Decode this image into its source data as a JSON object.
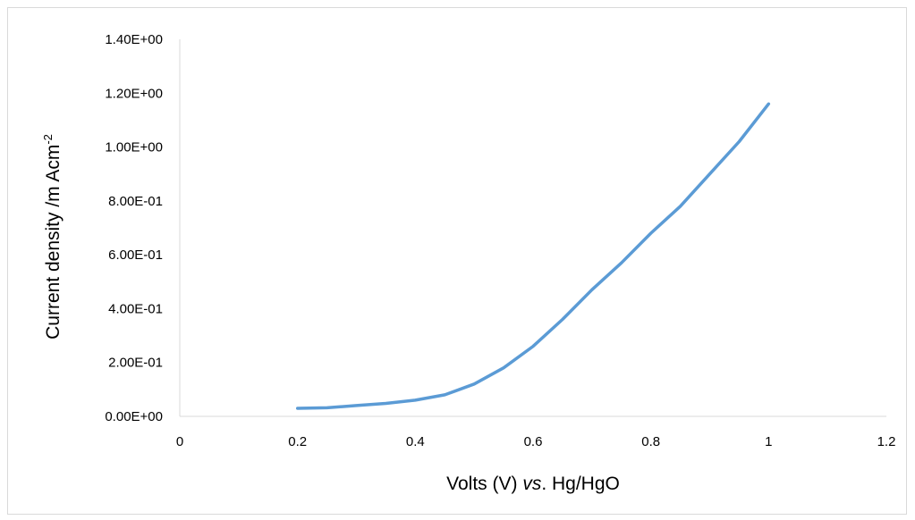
{
  "chart_data": {
    "type": "line",
    "title": "",
    "xlabel_parts": [
      "Volts (V) ",
      "vs",
      ". Hg/HgO"
    ],
    "ylabel": "Current density /m Acm",
    "ylabel_superscript": "-2",
    "xlim": [
      0,
      1.2
    ],
    "ylim": [
      0,
      1.4
    ],
    "x_ticks": [
      0,
      0.2,
      0.4,
      0.6,
      0.8,
      1,
      1.2
    ],
    "x_tick_labels": [
      "0",
      "0.2",
      "0.4",
      "0.6",
      "0.8",
      "1",
      "1.2"
    ],
    "y_ticks": [
      0,
      0.2,
      0.4,
      0.6,
      0.8,
      1.0,
      1.2,
      1.4
    ],
    "y_tick_labels": [
      "0.00E+00",
      "2.00E-01",
      "4.00E-01",
      "6.00E-01",
      "8.00E-01",
      "1.00E+00",
      "1.20E+00",
      "1.40E+00"
    ],
    "grid": false,
    "legend": "none",
    "series": [
      {
        "color": "#5b9bd5",
        "x": [
          0.2,
          0.25,
          0.3,
          0.35,
          0.4,
          0.45,
          0.5,
          0.55,
          0.6,
          0.65,
          0.7,
          0.75,
          0.8,
          0.85,
          0.9,
          0.95,
          1.0
        ],
        "y": [
          0.03,
          0.032,
          0.04,
          0.048,
          0.06,
          0.08,
          0.12,
          0.18,
          0.26,
          0.36,
          0.47,
          0.57,
          0.68,
          0.78,
          0.9,
          1.02,
          1.16
        ]
      }
    ]
  }
}
